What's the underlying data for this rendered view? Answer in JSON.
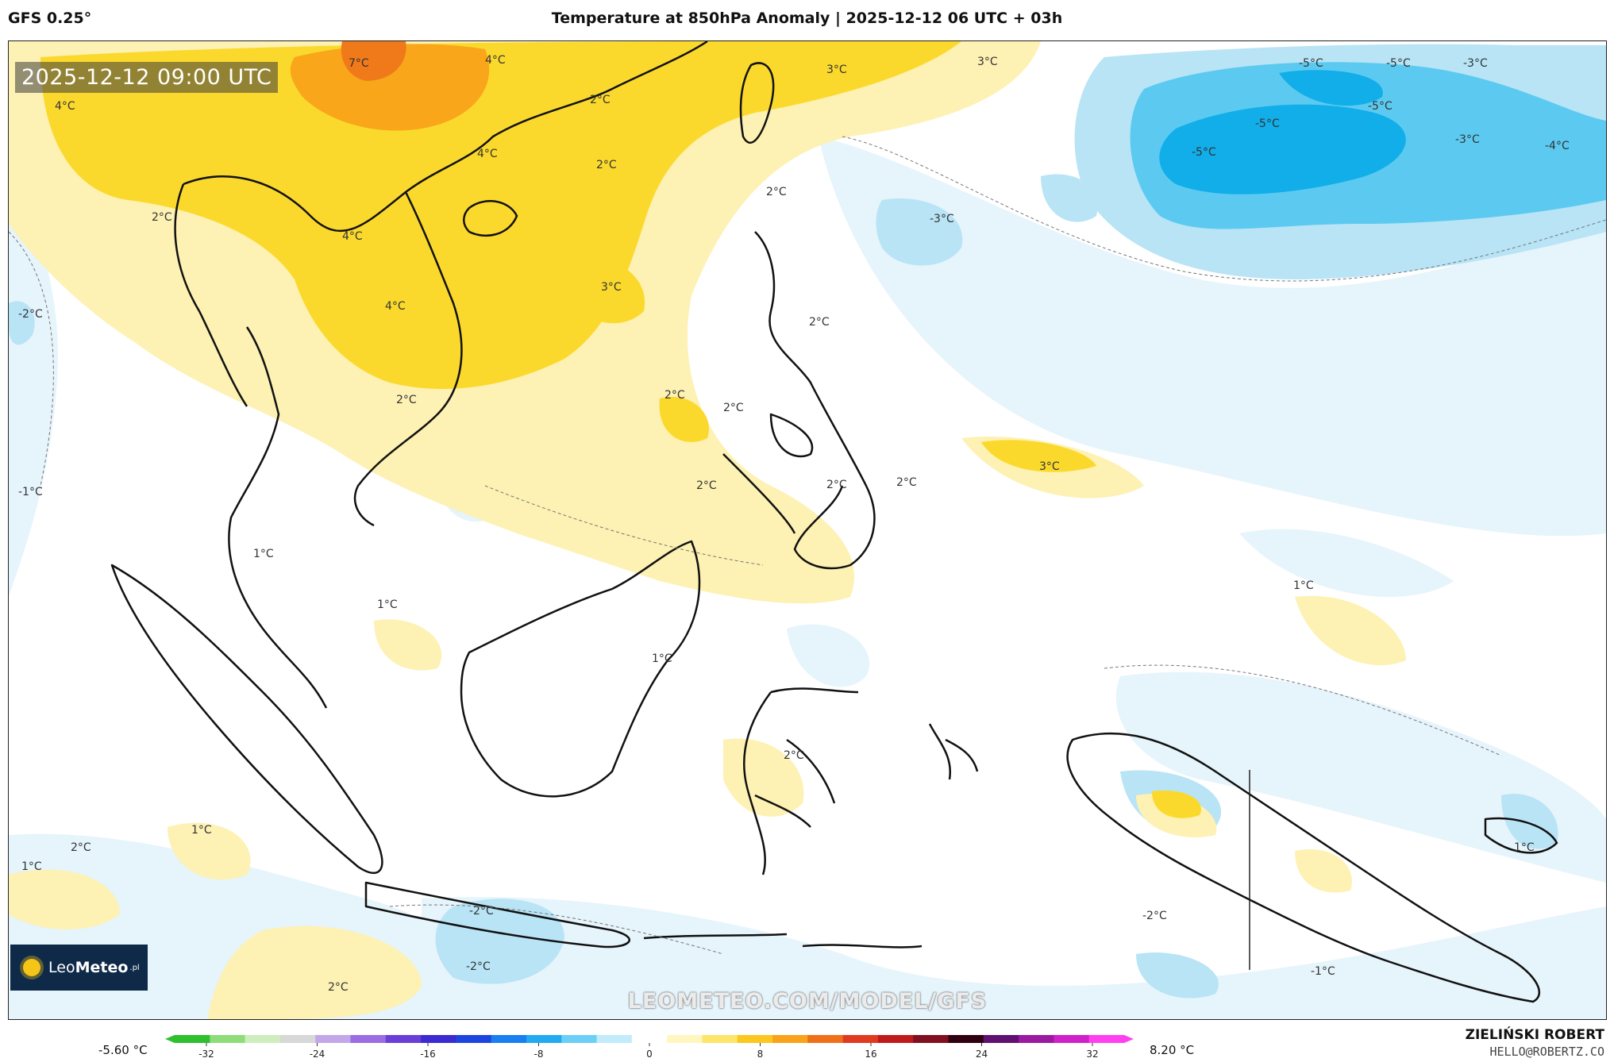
{
  "header": {
    "model": "GFS 0.25°",
    "title": "Temperature at 850hPa Anomaly | 2025-12-12 06 UTC + 03h"
  },
  "map": {
    "valid_time": "2025-12-12 09:00 UTC",
    "watermark": "LEOMETEO.COM/MODEL/GFS",
    "logo": {
      "light": "Leo",
      "bold": "Meteo",
      "suffix": ".pl"
    },
    "colors": {
      "ocean": "#ffffff",
      "light_blue": "#e6f4fb",
      "blue": "#b8e4f6",
      "mid_blue": "#5ccaf0",
      "deep_blue": "#11aeea",
      "light_yellow": "#fdf1b3",
      "yellow": "#fbd92c",
      "orange": "#f9a61a",
      "red_orange": "#f07a1a",
      "coastline": "#111111"
    },
    "contour_labels": [
      "7°C",
      "4°C",
      "3°C",
      "3°C",
      "-5°C",
      "-5°C",
      "-3°C",
      "-5°C",
      "-5°C",
      "-3°C",
      "-5°C",
      "-4°C",
      "4°C",
      "2°C",
      "4°C",
      "2°C",
      "2°C",
      "-3°C",
      "2°C",
      "4°C",
      "3°C",
      "4°C",
      "2°C",
      "-2°C",
      "2°C",
      "2°C",
      "2°C",
      "2°C",
      "2°C",
      "3°C",
      "2°C",
      "-1°C",
      "1°C",
      "1°C",
      "1°C",
      "1°C",
      "2°C",
      "1°C",
      "2°C",
      "1°C",
      "-2°C",
      "-2°C",
      "-1°C",
      "-2°C",
      "2°C",
      "1°C"
    ]
  },
  "scale": {
    "min_label": "-5.60 °C",
    "max_label": "8.20 °C",
    "ticks": [
      "-32",
      "-24",
      "-16",
      "-8",
      "0",
      "8",
      "16",
      "24",
      "32"
    ],
    "colors": [
      "#2fbf2f",
      "#8fdc7a",
      "#cfeec0",
      "#d8d8d8",
      "#c2a8e8",
      "#9a6ee0",
      "#6a3fd8",
      "#3b2bd0",
      "#1c45e0",
      "#1a7ff0",
      "#22aaf0",
      "#6cd0f6",
      "#c2ecfb",
      "#ffffff",
      "#fff6c0",
      "#fde66a",
      "#fbc81f",
      "#f9a31a",
      "#f0701a",
      "#e03a20",
      "#c01a1a",
      "#801020",
      "#300010",
      "#601070",
      "#9a1aa0",
      "#d020c8",
      "#ff40f0"
    ]
  },
  "author": {
    "name": "ZIELIŃSKI ROBERT",
    "email": "HELLO@ROBERTZ.CO"
  }
}
